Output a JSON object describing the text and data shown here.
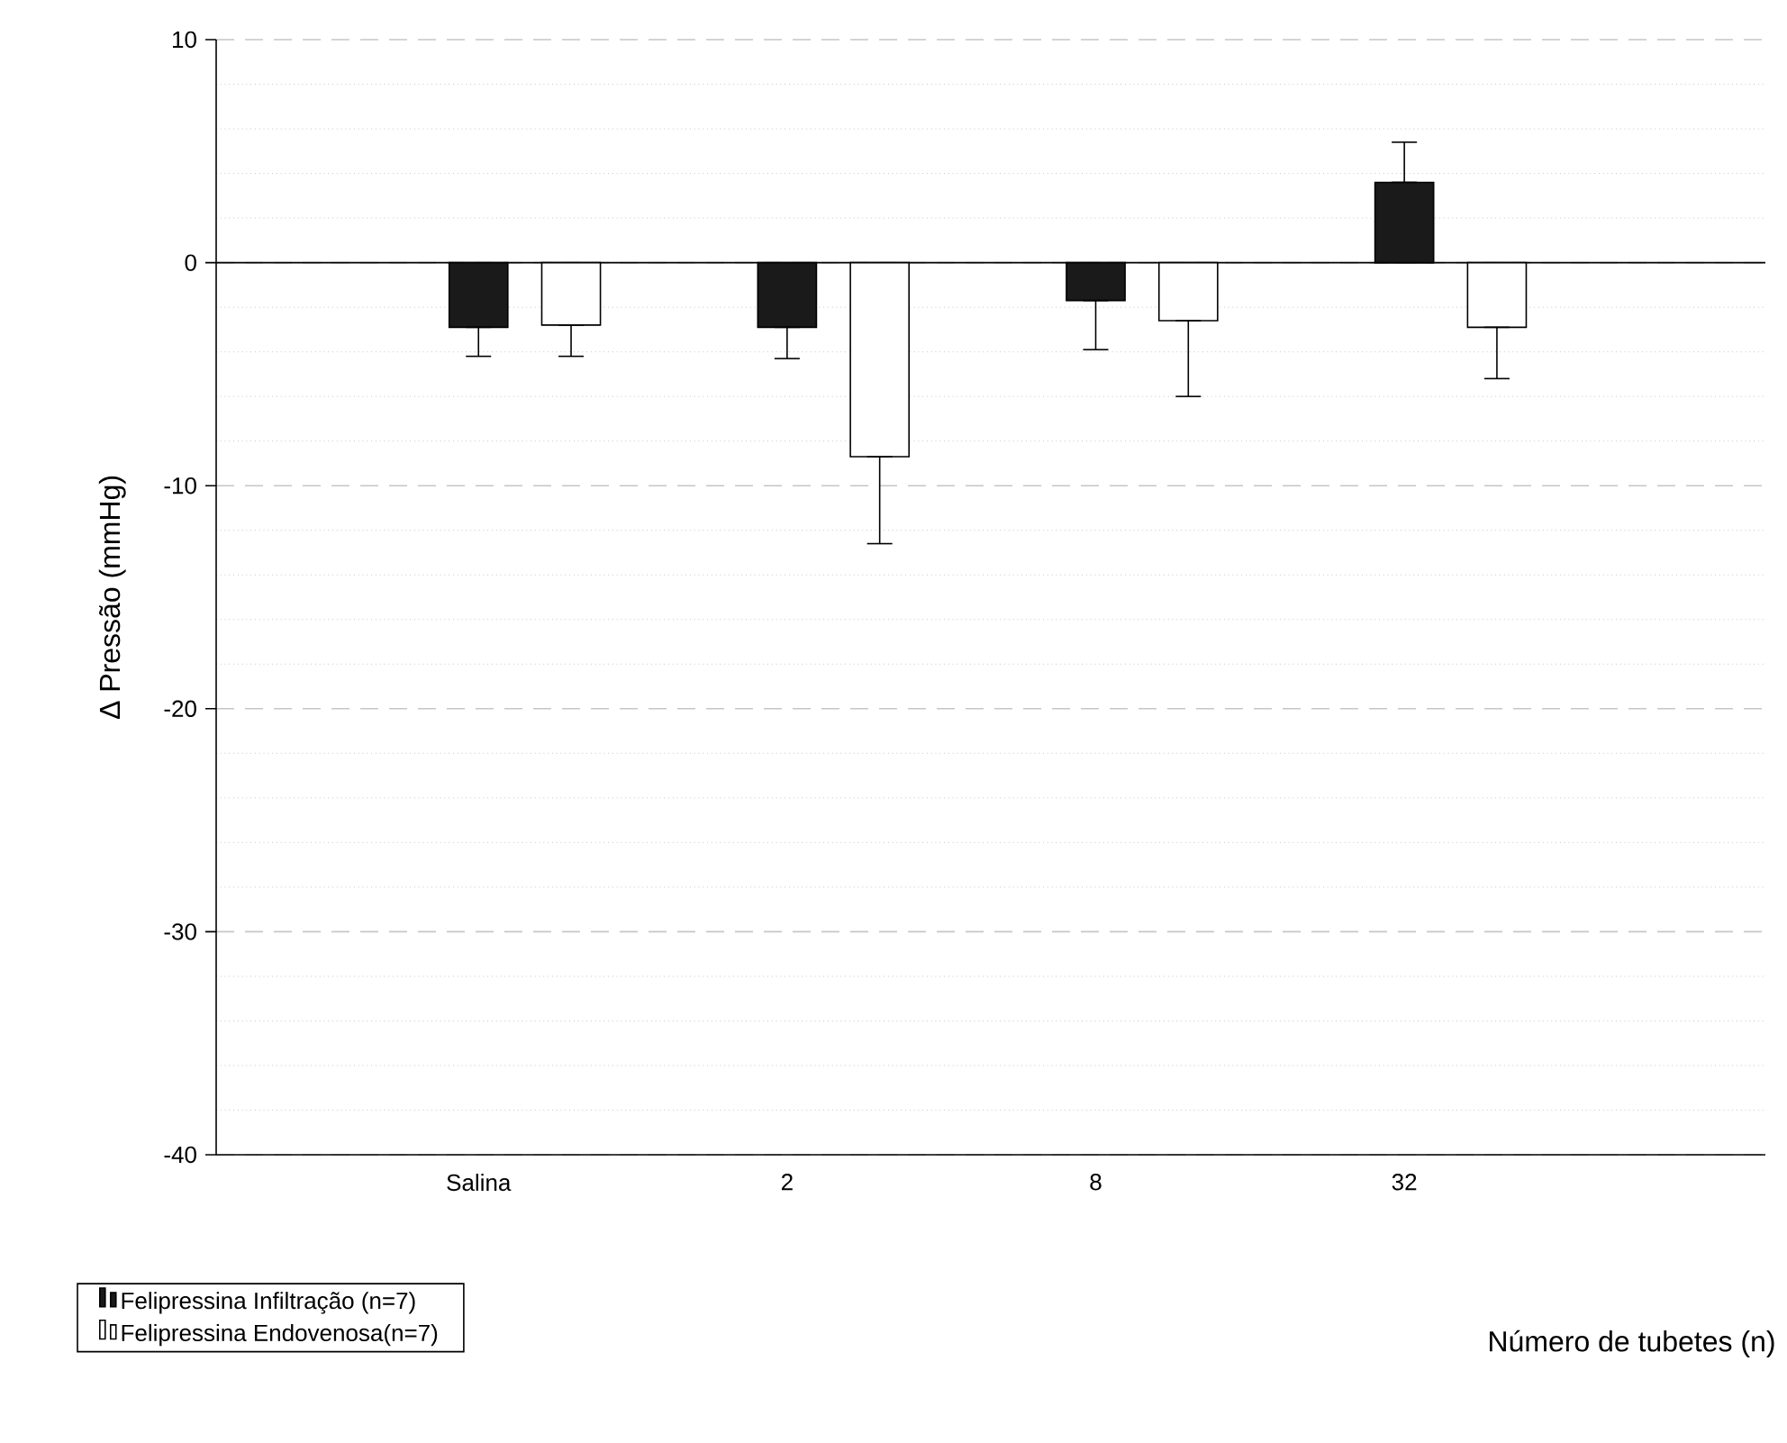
{
  "chart_data": {
    "type": "bar",
    "xlabel": "Número de tubetes (n)",
    "ylabel": "Δ Pressão (mmHg)",
    "categories": [
      "Salina",
      "2",
      "8",
      "32"
    ],
    "series": [
      {
        "name": "Felipressina Infiltração (n=7)",
        "color": "#1a1a1a",
        "values": [
          -2.9,
          -2.9,
          -1.7,
          3.6
        ],
        "errors": [
          [
            -4.2,
            -2.9
          ],
          [
            -4.3,
            -2.9
          ],
          [
            -3.9,
            -1.7
          ],
          [
            3.6,
            5.4
          ]
        ]
      },
      {
        "name": "Felipressina Endovenosa(n=7)",
        "color": "#ffffff",
        "values": [
          -2.8,
          -8.7,
          -2.6,
          -2.9
        ],
        "errors": [
          [
            -4.2,
            -2.8
          ],
          [
            -12.6,
            -8.7
          ],
          [
            -6.0,
            -2.6
          ],
          [
            -5.2,
            -2.9
          ]
        ]
      }
    ],
    "ylim": [
      -40,
      10
    ],
    "yticks": [
      -40,
      -30,
      -20,
      -10,
      0,
      10
    ],
    "grid": "y",
    "legend": "bottom left"
  }
}
